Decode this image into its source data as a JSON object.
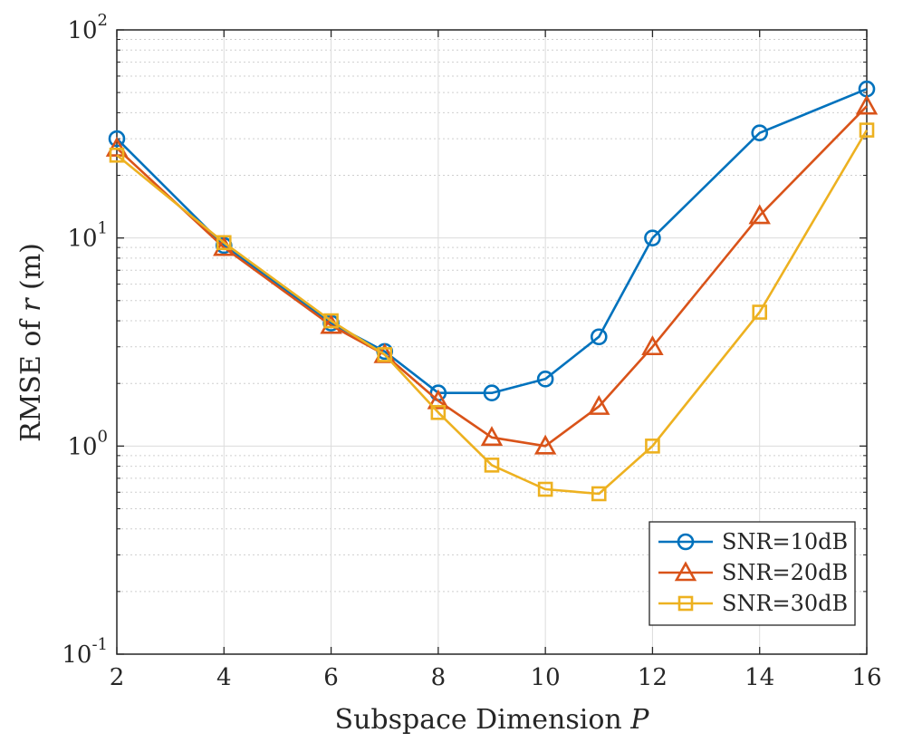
{
  "chart_data": {
    "type": "line",
    "xlabel": "Subspace Dimension P",
    "ylabel": "RMSE of r (m)",
    "xlim": [
      2,
      16
    ],
    "ylim": [
      0.1,
      100
    ],
    "y_scale": "log",
    "x_ticks": [
      "2",
      "4",
      "6",
      "8",
      "10",
      "12",
      "14",
      "16"
    ],
    "y_ticks": [
      {
        "base": "10",
        "exp": "-1"
      },
      {
        "base": "10",
        "exp": "0"
      },
      {
        "base": "10",
        "exp": "1"
      },
      {
        "base": "10",
        "exp": "2"
      }
    ],
    "grid": true,
    "legend_position": "bottom-right",
    "series": [
      {
        "name": "SNR=10dB",
        "color": "#0072BD",
        "marker": "circle",
        "x": [
          2,
          4,
          6,
          7,
          8,
          9,
          10,
          11,
          12,
          14,
          16
        ],
        "values": [
          30,
          9.2,
          3.9,
          2.85,
          1.8,
          1.8,
          2.1,
          3.35,
          10.0,
          32.0,
          52.0
        ]
      },
      {
        "name": "SNR=20dB",
        "color": "#D95319",
        "marker": "triangle",
        "x": [
          2,
          4,
          6,
          7,
          8,
          9,
          10,
          11,
          12,
          14,
          16
        ],
        "values": [
          27,
          9.0,
          3.8,
          2.75,
          1.65,
          1.1,
          1.0,
          1.55,
          3.0,
          12.8,
          43.0
        ]
      },
      {
        "name": "SNR=30dB",
        "color": "#EDB120",
        "marker": "square",
        "x": [
          2,
          4,
          6,
          7,
          8,
          9,
          10,
          11,
          12,
          14,
          16
        ],
        "values": [
          25,
          9.5,
          4.0,
          2.75,
          1.45,
          0.81,
          0.62,
          0.59,
          1.0,
          4.4,
          33.0
        ]
      }
    ]
  }
}
